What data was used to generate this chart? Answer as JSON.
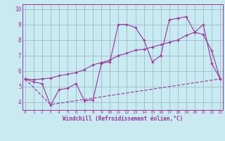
{
  "xlabel": "Windchill (Refroidissement éolien,°C)",
  "bg_color": "#c8eaf0",
  "line_color": "#993399",
  "grid_color": "#99bbcc",
  "line1_x": [
    0,
    1,
    2,
    3,
    4,
    5,
    6,
    7,
    8,
    9,
    10,
    11,
    12,
    13,
    14,
    15,
    16,
    17,
    18,
    19,
    20,
    21,
    22,
    23
  ],
  "line1_y": [
    5.5,
    5.3,
    5.2,
    3.8,
    4.8,
    4.9,
    5.2,
    4.1,
    4.15,
    6.5,
    6.6,
    9.0,
    9.0,
    8.8,
    8.0,
    6.6,
    7.0,
    9.3,
    9.4,
    9.5,
    8.5,
    9.0,
    6.5,
    5.5
  ],
  "line2_x": [
    0,
    1,
    2,
    3,
    4,
    5,
    6,
    7,
    8,
    9,
    10,
    11,
    12,
    13,
    14,
    15,
    16,
    17,
    18,
    19,
    20,
    21,
    22,
    23
  ],
  "line2_y": [
    5.5,
    5.45,
    5.5,
    5.55,
    5.7,
    5.8,
    5.9,
    6.1,
    6.4,
    6.55,
    6.7,
    7.0,
    7.15,
    7.35,
    7.4,
    7.55,
    7.7,
    7.85,
    8.0,
    8.3,
    8.5,
    8.35,
    7.3,
    5.5
  ],
  "line3_x": [
    0,
    3,
    23
  ],
  "line3_y": [
    5.5,
    3.85,
    5.5
  ],
  "xlim": [
    -0.3,
    23.3
  ],
  "ylim": [
    3.5,
    10.3
  ],
  "yticks": [
    4,
    5,
    6,
    7,
    8,
    9,
    10
  ],
  "xticks": [
    0,
    1,
    2,
    3,
    4,
    5,
    6,
    7,
    8,
    9,
    10,
    11,
    12,
    13,
    14,
    15,
    16,
    17,
    18,
    19,
    20,
    21,
    22,
    23
  ]
}
